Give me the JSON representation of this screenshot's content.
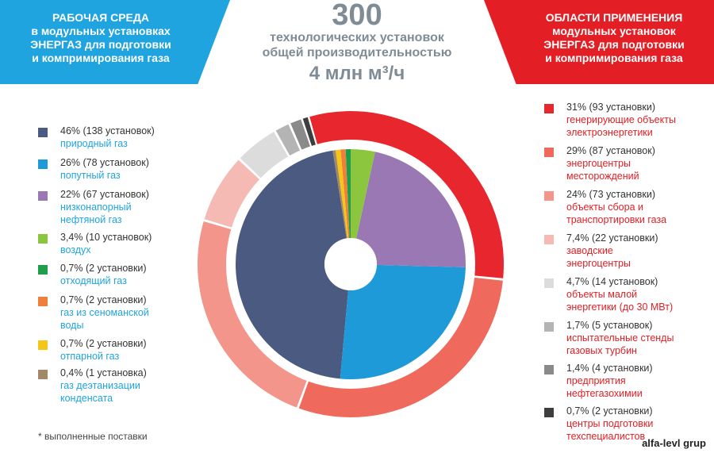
{
  "header": {
    "left_lines": [
      "РАБОЧАЯ СРЕДА",
      "в модульных установках",
      "ЭНЕРГАЗ для подготовки",
      "и компримирования газа"
    ],
    "center_number": "300",
    "center_lines": [
      "технологических установок",
      "общей производительностью"
    ],
    "center_capacity": "4 млн м³/ч",
    "right_lines": [
      "ОБЛАСТИ ПРИМЕНЕНИЯ",
      "модульных установок",
      "ЭНЕРГАЗ для подготовки",
      "и компримирования газа"
    ]
  },
  "footnote": "* выполненные поставки",
  "watermark": "alfa-levl grup",
  "chart_data": [
    {
      "type": "pie",
      "title": "",
      "slices": [
        {
          "value_text": "46% (138 установок)",
          "desc": [
            "природный газ"
          ],
          "value": 46,
          "color": "#4a5a80"
        },
        {
          "value_text": "26% (78 установок)",
          "desc": [
            "попутный газ"
          ],
          "value": 26,
          "color": "#1f9ad9"
        },
        {
          "value_text": "22% (67 установок)",
          "desc": [
            "низконапорный",
            "нефтяной газ"
          ],
          "value": 22,
          "color": "#9a78b4"
        },
        {
          "value_text": "3,4% (10 установок)",
          "desc": [
            "воздух"
          ],
          "value": 3.4,
          "color": "#8cc63e"
        },
        {
          "value_text": "0,7% (2 установки)",
          "desc": [
            "отходящий газ"
          ],
          "value": 0.7,
          "color": "#1e9e4a"
        },
        {
          "value_text": "0,7% (2 установки)",
          "desc": [
            "газ из сеноманской",
            "воды"
          ],
          "value": 0.7,
          "color": "#f07f3c"
        },
        {
          "value_text": "0,7% (2 установки)",
          "desc": [
            "отпарной газ"
          ],
          "value": 0.7,
          "color": "#f5c518"
        },
        {
          "value_text": "0,4% (1 установка)",
          "desc": [
            "газ деэтанизации",
            "конденсата"
          ],
          "value": 0.4,
          "color": "#a08868"
        }
      ]
    },
    {
      "type": "pie",
      "title": "",
      "slices": [
        {
          "value_text": "31% (93 установки)",
          "desc": [
            "генерирующие объекты",
            "электроэнергетики"
          ],
          "value": 31,
          "color": "#e8262d"
        },
        {
          "value_text": "29% (87 установок)",
          "desc": [
            "энергоцентры",
            "месторождений"
          ],
          "value": 29,
          "color": "#ef6a5c"
        },
        {
          "value_text": "24% (73 установки)",
          "desc": [
            "объекты сбора и",
            "транспортировки газа"
          ],
          "value": 24,
          "color": "#f3958a"
        },
        {
          "value_text": "7,4% (22 установки)",
          "desc": [
            "заводские",
            "энергоцентры"
          ],
          "value": 7.4,
          "color": "#f5bab4"
        },
        {
          "value_text": "4,7% (14 установок)",
          "desc": [
            "объекты малой",
            "энергетики (до 30 МВт)"
          ],
          "value": 4.7,
          "color": "#dcdcdc"
        },
        {
          "value_text": "1,7% (5 установок)",
          "desc": [
            "испытательные стенды",
            "газовых турбин"
          ],
          "value": 1.7,
          "color": "#b4b4b4"
        },
        {
          "value_text": "1,4% (4 установки)",
          "desc": [
            "предприятия",
            "нефтегазохимии"
          ],
          "value": 1.4,
          "color": "#8a8a8a"
        },
        {
          "value_text": "0,7% (2 установки)",
          "desc": [
            "центры подготовки",
            "техспециалистов"
          ],
          "value": 0.7,
          "color": "#3e3e3e"
        }
      ]
    }
  ]
}
